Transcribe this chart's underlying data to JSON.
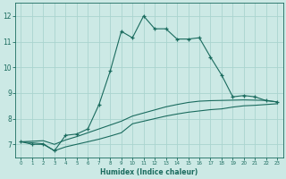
{
  "xlabel": "Humidex (Indice chaleur)",
  "background_color": "#cce9e5",
  "grid_color": "#aad4cf",
  "line_color": "#1a6b5e",
  "xlim": [
    -0.5,
    23.5
  ],
  "ylim": [
    6.5,
    12.5
  ],
  "x_ticks": [
    0,
    1,
    2,
    3,
    4,
    5,
    6,
    7,
    8,
    9,
    10,
    11,
    12,
    13,
    14,
    15,
    16,
    17,
    18,
    19,
    20,
    21,
    22,
    23
  ],
  "y_ticks": [
    7,
    8,
    9,
    10,
    11,
    12
  ],
  "series1_x": [
    0,
    1,
    2,
    3,
    4,
    5,
    6,
    7,
    8,
    9,
    10,
    11,
    12,
    13,
    14,
    15,
    16,
    17,
    18,
    19,
    20,
    21,
    22,
    23
  ],
  "series1_y": [
    7.1,
    7.0,
    7.0,
    6.75,
    7.35,
    7.4,
    7.6,
    8.55,
    9.85,
    11.4,
    11.15,
    12.0,
    11.5,
    11.5,
    11.1,
    11.1,
    11.15,
    10.4,
    9.7,
    8.85,
    8.9,
    8.85,
    8.7,
    8.65
  ],
  "series2_x": [
    0,
    1,
    2,
    3,
    4,
    5,
    6,
    7,
    8,
    9,
    10,
    11,
    12,
    13,
    14,
    15,
    16,
    17,
    18,
    19,
    20,
    21,
    22,
    23
  ],
  "series2_y": [
    7.1,
    7.12,
    7.14,
    7.0,
    7.17,
    7.3,
    7.45,
    7.6,
    7.75,
    7.9,
    8.1,
    8.22,
    8.34,
    8.46,
    8.55,
    8.63,
    8.68,
    8.7,
    8.71,
    8.72,
    8.73,
    8.72,
    8.71,
    8.65
  ],
  "series3_x": [
    0,
    1,
    2,
    3,
    4,
    5,
    6,
    7,
    8,
    9,
    10,
    11,
    12,
    13,
    14,
    15,
    16,
    17,
    18,
    19,
    20,
    21,
    22,
    23
  ],
  "series3_y": [
    7.1,
    7.06,
    7.02,
    6.75,
    6.9,
    7.0,
    7.1,
    7.2,
    7.32,
    7.45,
    7.8,
    7.9,
    8.0,
    8.1,
    8.18,
    8.25,
    8.3,
    8.35,
    8.38,
    8.45,
    8.5,
    8.52,
    8.55,
    8.58
  ]
}
